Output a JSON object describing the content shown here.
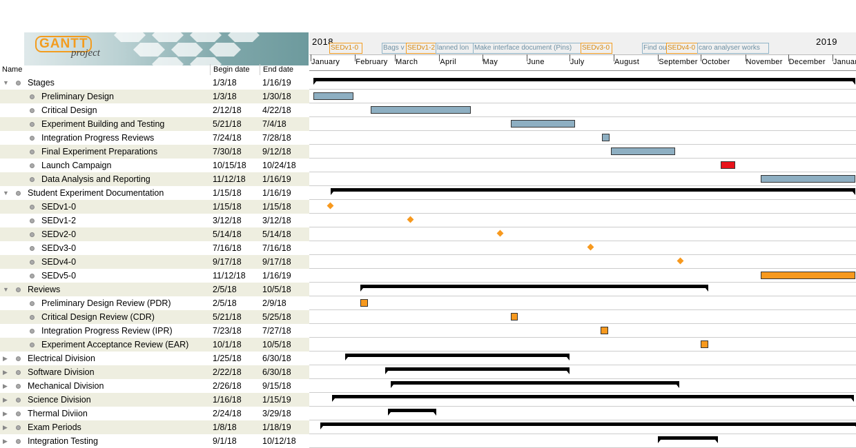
{
  "logo": {
    "text": "GANTT",
    "subtext": "project"
  },
  "columns": {
    "name": "Name",
    "begin": "Begin date",
    "end": "End date"
  },
  "rows": [
    {
      "name": "Stages",
      "begin": "1/3/18",
      "end": "1/16/19",
      "type": "group",
      "expanded": true
    },
    {
      "name": "Preliminary Design",
      "begin": "1/3/18",
      "end": "1/30/18",
      "type": "task"
    },
    {
      "name": "Critical Design",
      "begin": "2/12/18",
      "end": "4/22/18",
      "type": "task"
    },
    {
      "name": "Experiment Building and Testing",
      "begin": "5/21/18",
      "end": "7/4/18",
      "type": "task"
    },
    {
      "name": "Integration Progress Reviews",
      "begin": "7/24/18",
      "end": "7/28/18",
      "type": "task"
    },
    {
      "name": "Final Experiment Preparations",
      "begin": "7/30/18",
      "end": "9/12/18",
      "type": "task"
    },
    {
      "name": "Launch Campaign",
      "begin": "10/15/18",
      "end": "10/24/18",
      "type": "task"
    },
    {
      "name": "Data Analysis and Reporting",
      "begin": "11/12/18",
      "end": "1/16/19",
      "type": "task"
    },
    {
      "name": "Student Experiment Documentation",
      "begin": "1/15/18",
      "end": "1/16/19",
      "type": "group",
      "expanded": true
    },
    {
      "name": "SEDv1-0",
      "begin": "1/15/18",
      "end": "1/15/18",
      "type": "task"
    },
    {
      "name": "SEDv1-2",
      "begin": "3/12/18",
      "end": "3/12/18",
      "type": "task"
    },
    {
      "name": "SEDv2-0",
      "begin": "5/14/18",
      "end": "5/14/18",
      "type": "task"
    },
    {
      "name": "SEDv3-0",
      "begin": "7/16/18",
      "end": "7/16/18",
      "type": "task"
    },
    {
      "name": "SEDv4-0",
      "begin": "9/17/18",
      "end": "9/17/18",
      "type": "task"
    },
    {
      "name": "SEDv5-0",
      "begin": "11/12/18",
      "end": "1/16/19",
      "type": "task"
    },
    {
      "name": "Reviews",
      "begin": "2/5/18",
      "end": "10/5/18",
      "type": "group",
      "expanded": true
    },
    {
      "name": "Preliminary Design Review (PDR)",
      "begin": "2/5/18",
      "end": "2/9/18",
      "type": "task"
    },
    {
      "name": "Critical Design Review (CDR)",
      "begin": "5/21/18",
      "end": "5/25/18",
      "type": "task"
    },
    {
      "name": "Integration Progress Review (IPR)",
      "begin": "7/23/18",
      "end": "7/27/18",
      "type": "task"
    },
    {
      "name": "Experiment Acceptance Review (EAR)",
      "begin": "10/1/18",
      "end": "10/5/18",
      "type": "task"
    },
    {
      "name": "Electrical Division",
      "begin": "1/25/18",
      "end": "6/30/18",
      "type": "group",
      "expanded": false
    },
    {
      "name": "Software Division",
      "begin": "2/22/18",
      "end": "6/30/18",
      "type": "group",
      "expanded": false
    },
    {
      "name": "Mechanical Division",
      "begin": "2/26/18",
      "end": "9/15/18",
      "type": "group",
      "expanded": false
    },
    {
      "name": "Science Division",
      "begin": "1/16/18",
      "end": "1/15/19",
      "type": "group",
      "expanded": false
    },
    {
      "name": "Thermal Diviion",
      "begin": "2/24/18",
      "end": "3/29/18",
      "type": "group",
      "expanded": false
    },
    {
      "name": "Exam Periods",
      "begin": "1/8/18",
      "end": "1/18/19",
      "type": "group",
      "expanded": false
    },
    {
      "name": "Integration Testing",
      "begin": "9/1/18",
      "end": "10/12/18",
      "type": "group",
      "expanded": false
    }
  ],
  "timeline": {
    "years": [
      "2018",
      "2019"
    ],
    "months": [
      "January",
      "February",
      "March",
      "April",
      "May",
      "June",
      "July",
      "August",
      "September",
      "October",
      "November",
      "December",
      "January"
    ],
    "milestone_labels": [
      {
        "text": "SEDv1-0",
        "color": "orange"
      },
      {
        "text": "Bags v",
        "color": "blue"
      },
      {
        "text": "SEDv1-2",
        "color": "orange"
      },
      {
        "text": "lanned lon",
        "color": "blue"
      },
      {
        "text": "Make interface document (Pins)",
        "color": "blue"
      },
      {
        "text": "SEDv3-0",
        "color": "orange"
      },
      {
        "text": "Find ou",
        "color": "blue"
      },
      {
        "text": "SEDv4-0",
        "color": "orange"
      },
      {
        "text": "caro analyser works",
        "color": "blue"
      }
    ]
  },
  "colors": {
    "task": "#8eafc2",
    "launch": "#e8131b",
    "milestone": "#f7991e",
    "summary": "#000000",
    "row_alt": "#eeeee0"
  }
}
